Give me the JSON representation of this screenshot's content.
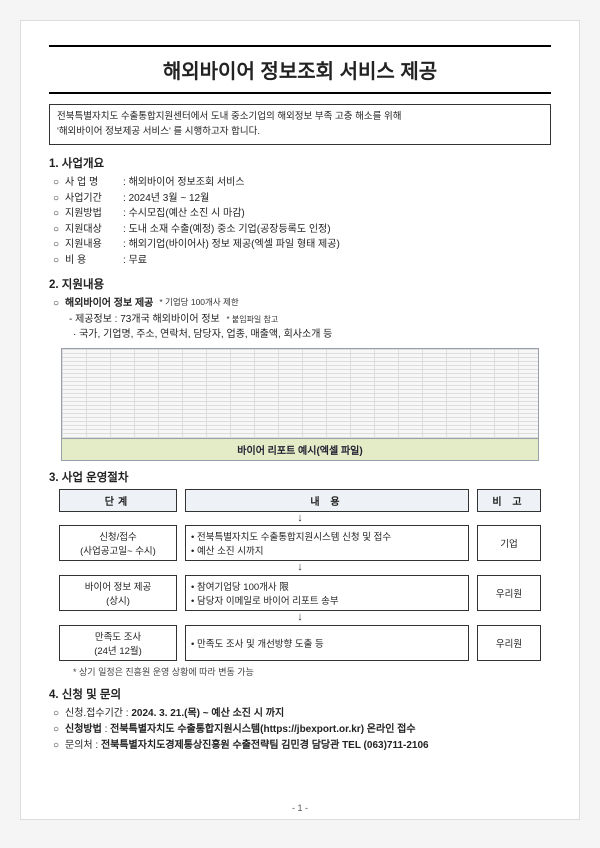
{
  "title": "해외바이어 정보조회 서비스 제공",
  "intro_line1": "전북특별자치도 수출통합지원센터에서 도내 중소기업의 해외정보 부족 고충 해소를 위해",
  "intro_line2": "'해외바이어 정보제공 서비스' 를 시행하고자 합니다.",
  "sec1_h": "1. 사업개요",
  "sec1": {
    "name_l": "사 업 명",
    "name_v": "해외바이어 정보조회 서비스",
    "period_l": "사업기간",
    "period_v": "2024년 3월 ~ 12월",
    "method_l": "지원방법",
    "method_v": "수시모집(예산 소진 시 마감)",
    "target_l": "지원대상",
    "target_v": "도내 소재 수출(예정) 중소 기업(공장등록도 인정)",
    "content_l": "지원내용",
    "content_v": "해외기업(바이어사) 정보 제공(엑셀 파일 형태 제공)",
    "fee_l": "비    용",
    "fee_v": "무료"
  },
  "sec2_h": "2. 지원내용",
  "sec2": {
    "head": "해외바이어 정보 제공",
    "head_note": "* 기업당 100개사 제한",
    "line1": "- 제공정보 : 73개국 해외바이어 정보",
    "line1_note": "* 붙임파일 참고",
    "line2": "· 국가, 기업명, 주소, 연락처, 담당자, 업종, 매출액, 회사소개 등",
    "caption": "바이어 리포트 예시(엑셀 파일)"
  },
  "sec3_h": "3. 사업 운영절차",
  "sec3": {
    "h_a": "단계",
    "h_b": "내 용",
    "h_c": "비 고",
    "r1a1": "신청/접수",
    "r1a2": "(사업공고일~ 수시)",
    "r1b1": "전북특별자치도 수출통합지원시스템 신청 및 접수",
    "r1b2": "예산 소진 시까지",
    "r1c": "기업",
    "r2a1": "바이어 정보 제공",
    "r2a2": "(상시)",
    "r2b1": "참여기업당 100개사 限",
    "r2b2": "담당자 이메일로 바이어 리포트 송부",
    "r2c": "우리원",
    "r3a1": "만족도 조사",
    "r3a2": "(24년 12월)",
    "r3b1": "만족도 조사 및 개선방향 도출 등",
    "r3c": "우리원",
    "note": "* 상기 일정은 진흥원 운영 상황에 따라 변동 가능"
  },
  "sec4_h": "4. 신청 및 문의",
  "sec4": {
    "period_l": "신청.접수기간",
    "period_v": "2024. 3. 21.(목) ~ 예산 소진 시 까지",
    "method_l": "신청방법",
    "method_v": "전북특별자치도 수출통합지원시스템(https://jbexport.or.kr) 온라인 접수",
    "contact_l": "문의처",
    "contact_v": "전북특별자치도경제통상진흥원 수출전략팀 김민경 담당관 TEL (063)711-2106"
  },
  "page_no": "- 1 -"
}
